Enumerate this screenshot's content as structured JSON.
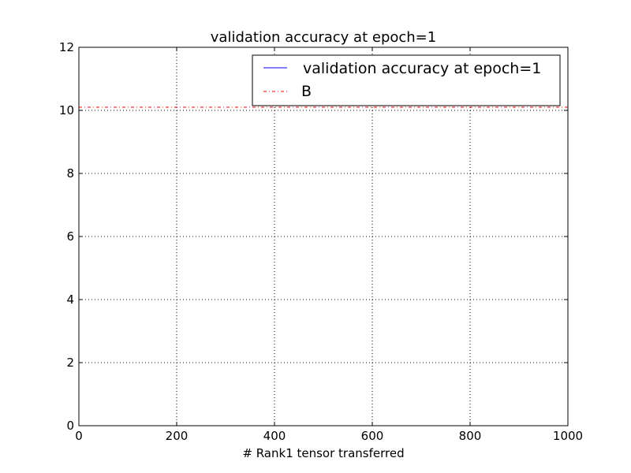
{
  "chart_data": {
    "type": "line",
    "title": "validation accuracy at epoch=1",
    "xlabel": "# Rank1 tensor transferred",
    "ylabel": "",
    "xlim": [
      0,
      1000
    ],
    "ylim": [
      0,
      12
    ],
    "xticks": [
      0,
      200,
      400,
      600,
      800,
      1000
    ],
    "yticks": [
      0,
      2,
      4,
      6,
      8,
      10,
      12
    ],
    "grid": true,
    "legend_position": "top-right",
    "series": [
      {
        "name": "validation accuracy at epoch=1",
        "color": "#0000ff",
        "style": "solid",
        "x": [],
        "y": []
      },
      {
        "name": "B",
        "color": "#ff0000",
        "style": "dashdot",
        "x": [
          0,
          1000
        ],
        "y": [
          10.1,
          10.1
        ]
      }
    ]
  }
}
